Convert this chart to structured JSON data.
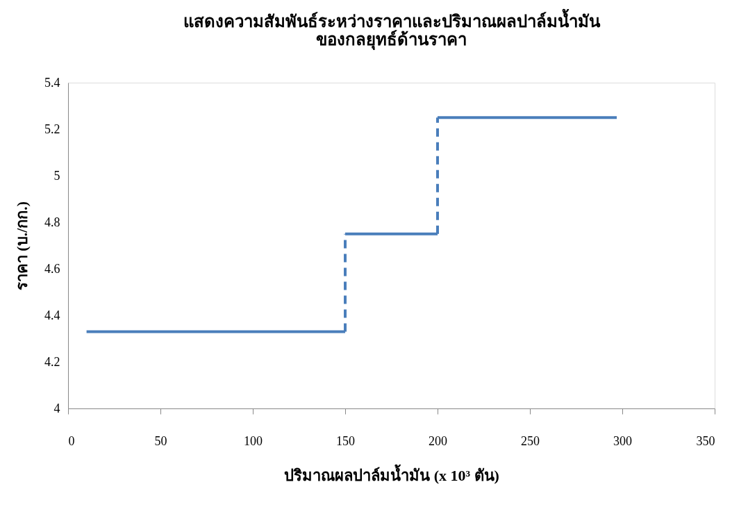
{
  "chart_data": {
    "type": "line",
    "title": "แสดงความสัมพันธ์ระหว่างราคาและปริมาณผลปาล์มน้ำมัน\nของกลยุทธ์ด้านราคา",
    "xlabel": "ปริมาณผลปาล์มน้ำมัน (x 10³ ตัน)",
    "ylabel": "ราคา (บ./กก.)",
    "series": [
      {
        "color": "#4a7ebb",
        "x": [
          10,
          150
        ],
        "values": [
          4.33,
          4.33
        ],
        "line_style": "solid"
      },
      {
        "color": "#4a7ebb",
        "x": [
          150,
          150
        ],
        "values": [
          4.33,
          4.75
        ],
        "line_style": "dashed"
      },
      {
        "color": "#4a7ebb",
        "x": [
          150,
          200
        ],
        "values": [
          4.75,
          4.75
        ],
        "line_style": "solid"
      },
      {
        "color": "#4a7ebb",
        "x": [
          200,
          200
        ],
        "values": [
          4.75,
          5.25
        ],
        "line_style": "dashed"
      },
      {
        "color": "#4a7ebb",
        "x": [
          200,
          297
        ],
        "values": [
          5.25,
          5.25
        ],
        "line_style": "solid"
      }
    ],
    "xlim": [
      0,
      350
    ],
    "xticks": [
      0,
      50,
      100,
      150,
      200,
      250,
      300,
      350
    ],
    "ylim": [
      4,
      5.4
    ],
    "yticks": [
      4,
      4.2,
      4.4,
      4.6,
      4.8,
      5,
      5.2,
      5.4
    ],
    "grid": false,
    "legend": false,
    "marker": "none"
  }
}
